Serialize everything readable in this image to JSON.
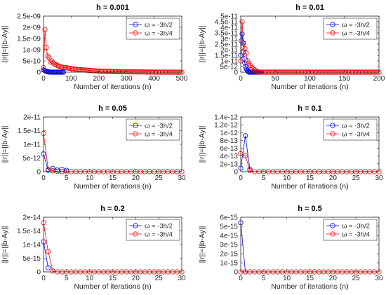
{
  "colors": {
    "series_1": "#0000ff",
    "series_2": "#ff0000",
    "axis": "#262626",
    "background": "#ffffff"
  },
  "chart_data": [
    {
      "type": "scatter",
      "title": "h = 0.001",
      "xlabel": "Number of iterations (n)",
      "ylabel": "||r||=||b-Ay||",
      "xlim": [
        0,
        500
      ],
      "ylim": [
        0,
        2.5e-09
      ],
      "xticks": [
        0,
        100,
        200,
        300,
        400,
        500
      ],
      "xtick_labels": [
        "0",
        "100",
        "200",
        "300",
        "400",
        "500"
      ],
      "yticks": [
        0,
        5e-10,
        1e-09,
        1.5e-09,
        2e-09,
        2.5e-09
      ],
      "ytick_labels": [
        "0",
        "5e-10",
        "1e-09",
        "1.5e-09",
        "2e-09",
        "2.5e-09"
      ],
      "legend_position": "top-right",
      "series": [
        {
          "name": "ω = -3h/2",
          "color": "#0000ff",
          "x_start": 0,
          "x_step": 3,
          "values": [
            1e-10,
            8e-11,
            6e-11,
            5e-11,
            3e-11,
            2e-11,
            1e-11,
            5e-12,
            3e-12,
            2e-12,
            1e-12,
            0,
            0,
            0,
            0,
            0,
            0,
            0,
            0,
            0,
            0,
            0,
            0,
            0,
            0
          ]
        },
        {
          "name": "ω = -3h/4",
          "color": "#ff0000",
          "x_start": 0,
          "x_step": 5,
          "values": [
            2e-10,
            1.9e-09,
            1.1e-09,
            7.2e-10,
            6.5e-10,
            4.6e-10,
            5e-10,
            4.1e-10,
            3.6e-10,
            3.3e-10,
            3e-10,
            2.7e-10,
            2.5e-10,
            2.3e-10,
            2.2e-10,
            2.1e-10,
            2e-10,
            1.9e-10,
            1.8e-10,
            1.7e-10,
            1.6e-10,
            1.5e-10,
            1.4e-10,
            1.3e-10,
            1.25e-10,
            1.2e-10,
            1.15e-10,
            1.1e-10,
            1.05e-10,
            1e-10,
            9.5e-11,
            9e-11,
            8.5e-11,
            8e-11,
            7.6e-11,
            7.2e-11,
            6.8e-11,
            6.4e-11,
            6e-11,
            5.7e-11,
            5.4e-11,
            5.1e-11,
            4.8e-11,
            4.5e-11,
            4.3e-11,
            4.1e-11,
            3.9e-11,
            3.7e-11,
            3.5e-11,
            3.3e-11,
            3.1e-11,
            3e-11,
            2.9e-11,
            2.8e-11,
            2.7e-11,
            2.6e-11,
            2.5e-11,
            2.4e-11,
            2.3e-11,
            2.2e-11,
            2.1e-11,
            2e-11,
            1.9e-11,
            1.8e-11,
            1.7e-11,
            1.6e-11,
            1.5e-11,
            1.4e-11,
            1.3e-11,
            1.2e-11,
            1.1e-11,
            1e-11,
            9e-12,
            8e-12,
            7e-12,
            6e-12,
            5e-12,
            4e-12,
            3e-12,
            2e-12,
            1e-12,
            1e-12,
            1e-12,
            1e-12,
            1e-12,
            1e-12,
            1e-12,
            1e-12,
            1e-12,
            1e-12,
            1e-12,
            1e-12,
            1e-12,
            1e-12,
            1e-12,
            1e-12,
            1e-12,
            1e-12,
            1e-12,
            1e-12,
            1e-12
          ]
        }
      ]
    },
    {
      "type": "scatter",
      "title": "h = 0.01",
      "xlabel": "Number of iterations (n)",
      "ylabel": "||r||=||b-Ay||",
      "xlim": [
        0,
        200
      ],
      "ylim": [
        0,
        5e-11
      ],
      "xticks": [
        0,
        50,
        100,
        150,
        200
      ],
      "xtick_labels": [
        "0",
        "50",
        "100",
        "150",
        "200"
      ],
      "yticks": [
        0,
        5e-12,
        1e-11,
        1.5e-11,
        2e-11,
        2.5e-11,
        3e-11,
        3.5e-11,
        4e-11,
        4.5e-11,
        5e-11
      ],
      "ytick_labels": [
        "0",
        "5e-12",
        "1e-11",
        "1.5e-11",
        "2e-11",
        "2.5e-11",
        "3e-11",
        "3.5e-11",
        "4e-11",
        "4.5e-11",
        "5e-11"
      ],
      "legend_position": "top-right",
      "series": [
        {
          "name": "ω = -3h/2",
          "color": "#0000ff",
          "x_start": 0,
          "x_step": 1,
          "values": [
            1.5e-11,
            2.8e-11,
            3.4e-11,
            2.6e-11,
            1.8e-11,
            1.2e-11,
            8e-12,
            5e-12,
            3e-12,
            2e-12,
            1e-12,
            5e-13,
            0,
            0,
            0,
            0,
            0,
            0,
            0,
            0,
            0,
            0,
            0,
            0,
            0,
            0,
            0,
            0,
            0,
            0
          ]
        },
        {
          "name": "ω = -3h/4",
          "color": "#ff0000",
          "x_start": 0,
          "x_step": 2,
          "values": [
            1e-11,
            4.5e-11,
            2.6e-11,
            2.1e-11,
            1.7e-11,
            1e-11,
            8e-12,
            6e-12,
            4e-12,
            3e-12,
            2e-12,
            1e-12,
            5e-13,
            0,
            0,
            0,
            0,
            0,
            0,
            0,
            0,
            0,
            0,
            0,
            0,
            0,
            0,
            0,
            0,
            0,
            0,
            0,
            0,
            0,
            0,
            0,
            0,
            0,
            0,
            0,
            0,
            0,
            0,
            0,
            0,
            0,
            0,
            0,
            0,
            0,
            0,
            0,
            0,
            0,
            0,
            0,
            0,
            0,
            0,
            0,
            0,
            0,
            0,
            0,
            0,
            0,
            0,
            0,
            0,
            0,
            0,
            0,
            0,
            0,
            0,
            0,
            0,
            0,
            0,
            0,
            0,
            0,
            0,
            0,
            0,
            0,
            0,
            0,
            0,
            0,
            0,
            0,
            0,
            0,
            0,
            0,
            0,
            0,
            0,
            0,
            0
          ]
        }
      ]
    },
    {
      "type": "scatter",
      "title": "h = 0.05",
      "xlabel": "Number of iterations (n)",
      "ylabel": "||r||=||b-Ay||",
      "xlim": [
        0,
        30
      ],
      "ylim": [
        0,
        2e-11
      ],
      "xticks": [
        0,
        5,
        10,
        15,
        20,
        25,
        30
      ],
      "xtick_labels": [
        "0",
        "5",
        "10",
        "15",
        "20",
        "25",
        "30"
      ],
      "yticks": [
        0,
        5e-12,
        1e-11,
        1.5e-11,
        2e-11
      ],
      "ytick_labels": [
        "0",
        "5e-12",
        "1e-11",
        "1.5e-11",
        "2e-11"
      ],
      "legend_position": "top-right",
      "series": [
        {
          "name": "ω = -3h/2",
          "color": "#0000ff",
          "x_start": 0,
          "x_step": 1,
          "values": [
            6.5e-12,
            5e-13,
            1.2e-12,
            6e-13,
            8e-13,
            5e-13
          ]
        },
        {
          "name": "ω = -3h/4",
          "color": "#ff0000",
          "x_start": 0,
          "x_step": 1,
          "values": [
            1.4e-11,
            9e-13,
            3e-13,
            1e-13,
            0,
            0,
            0,
            0,
            0,
            0,
            0,
            0,
            0,
            0,
            0,
            0,
            0,
            0,
            0,
            0,
            0,
            0,
            0,
            0,
            0,
            0,
            0,
            0,
            0,
            0,
            0
          ]
        }
      ]
    },
    {
      "type": "scatter",
      "title": "h = 0.1",
      "xlabel": "Number of iterations (n)",
      "ylabel": "||r||=||b-Ay||",
      "xlim": [
        0,
        30
      ],
      "ylim": [
        0,
        1.4e-12
      ],
      "xticks": [
        0,
        5,
        10,
        15,
        20,
        25,
        30
      ],
      "xtick_labels": [
        "0",
        "5",
        "10",
        "15",
        "20",
        "25",
        "30"
      ],
      "yticks": [
        0,
        2e-13,
        4e-13,
        6e-13,
        8e-13,
        1e-12,
        1.2e-12,
        1.4e-12
      ],
      "ytick_labels": [
        "0",
        "2e-13",
        "4e-13",
        "6e-13",
        "8e-13",
        "1e-12",
        "1.2e-12",
        "1.4e-12"
      ],
      "legend_position": "top-right",
      "series": [
        {
          "name": "ω = -3h/2",
          "color": "#0000ff",
          "x_start": 0,
          "x_step": 1,
          "values": [
            9e-14,
            9.2e-13,
            6e-14
          ]
        },
        {
          "name": "ω = -3h/4",
          "color": "#ff0000",
          "x_start": 0,
          "x_step": 1,
          "values": [
            4.6e-13,
            4.1e-13,
            3e-14,
            0,
            0,
            0,
            0,
            0,
            0,
            0,
            0,
            0,
            0,
            0,
            0,
            0,
            0,
            0,
            0,
            0,
            0,
            0,
            0,
            0,
            0,
            0,
            0,
            0,
            0,
            0,
            0
          ]
        }
      ]
    },
    {
      "type": "scatter",
      "title": "h = 0.2",
      "xlabel": "Number of iterations (n)",
      "ylabel": "||r||=||b-Ay||",
      "xlim": [
        0,
        30
      ],
      "ylim": [
        0,
        2e-14
      ],
      "xticks": [
        0,
        5,
        10,
        15,
        20,
        25,
        30
      ],
      "xtick_labels": [
        "0",
        "5",
        "10",
        "15",
        "20",
        "25",
        "30"
      ],
      "yticks": [
        0,
        5e-15,
        1e-14,
        1.5e-14,
        2e-14
      ],
      "ytick_labels": [
        "0",
        "5e-15",
        "1e-14",
        "1.5e-14",
        "2e-14"
      ],
      "legend_position": "top-right",
      "series": [
        {
          "name": "ω = -3h/2",
          "color": "#0000ff",
          "x_start": 0,
          "x_step": 1,
          "values": [
            1.1e-14,
            1.5e-15
          ]
        },
        {
          "name": "ω = -3h/4",
          "color": "#ff0000",
          "x_start": 0,
          "x_step": 1,
          "values": [
            1.8e-14,
            7.5e-15,
            3e-16,
            0,
            0,
            0,
            0,
            0,
            0,
            0,
            0,
            0,
            0,
            0,
            0,
            0,
            0,
            0,
            0,
            0,
            0,
            0,
            0,
            0,
            0,
            0,
            0,
            0,
            0,
            0,
            0
          ]
        }
      ]
    },
    {
      "type": "scatter",
      "title": "h = 0.5",
      "xlabel": "Number of iterations (n)",
      "ylabel": "||r||=||b-Ay||",
      "xlim": [
        0,
        30
      ],
      "ylim": [
        0,
        6e-15
      ],
      "xticks": [
        0,
        5,
        10,
        15,
        20,
        25,
        30
      ],
      "xtick_labels": [
        "0",
        "5",
        "10",
        "15",
        "20",
        "25",
        "30"
      ],
      "yticks": [
        0,
        1e-15,
        2e-15,
        3e-15,
        4e-15,
        5e-15,
        6e-15
      ],
      "ytick_labels": [
        "0",
        "1e-15",
        "2e-15",
        "3e-15",
        "4e-15",
        "5e-15",
        "6e-15"
      ],
      "legend_position": "top-right",
      "series": [
        {
          "name": "ω = -3h/2",
          "color": "#0000ff",
          "x_start": 0,
          "x_step": 1,
          "values": [
            5.4e-15,
            0
          ]
        },
        {
          "name": "ω = -3h/4",
          "color": "#ff0000",
          "x_start": 0,
          "x_step": 1,
          "values": [
            0,
            0,
            0,
            0,
            0,
            0,
            0,
            0,
            0,
            0,
            0,
            0,
            0,
            0,
            0,
            0,
            0,
            0,
            0,
            0,
            0,
            0,
            0,
            0,
            0,
            0,
            0,
            0,
            0,
            0,
            0
          ]
        }
      ]
    }
  ]
}
